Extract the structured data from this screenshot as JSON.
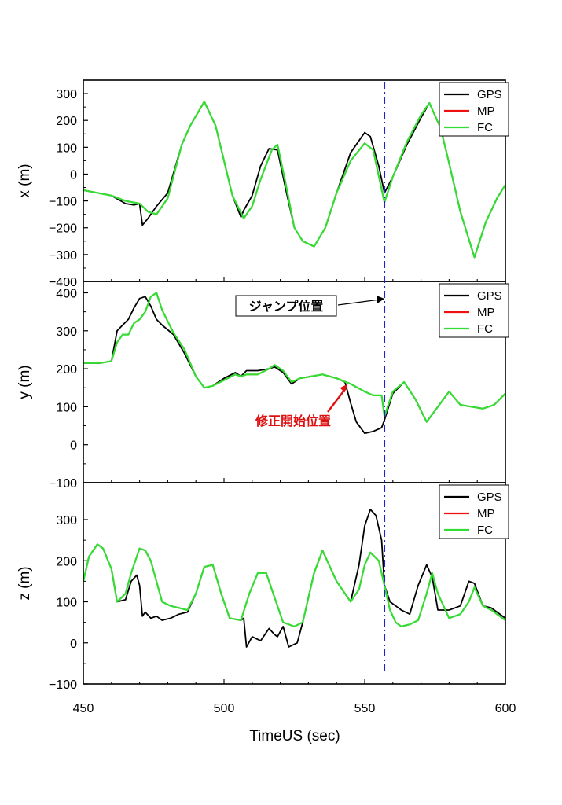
{
  "chart_data": {
    "type": "line",
    "xlabel": "TimeUS (sec)",
    "xlim": [
      450,
      600
    ],
    "x_ticks": [
      "450",
      "500",
      "550",
      "600"
    ],
    "colors": {
      "GPS": "#000000",
      "MP": "#ee1111",
      "FC": "#33dd33",
      "jump_line": "#2222cc"
    },
    "legend": [
      {
        "name": "GPS",
        "color": "#000000"
      },
      {
        "name": "MP",
        "color": "#ee1111"
      },
      {
        "name": "FC",
        "color": "#33dd33"
      }
    ],
    "jump_x": 557,
    "annotations": {
      "jump": "ジャンプ位置",
      "correction": "修正開始位置"
    },
    "panels": [
      {
        "key": "x",
        "ylabel": "x (m)",
        "ylim": [
          -400,
          350
        ],
        "y_ticks": [
          300,
          200,
          100,
          0,
          -100,
          -200,
          -300,
          -400
        ],
        "series": [
          {
            "name": "GPS",
            "x": [
              450,
              460,
              465,
              468,
              470,
              471,
              473,
              476,
              480,
              485,
              488,
              493,
              497,
              500,
              503,
              506,
              507,
              510,
              513,
              516,
              519,
              522,
              525,
              528,
              532,
              536,
              540,
              545,
              550,
              552,
              555,
              557,
              560,
              565,
              570,
              573,
              577,
              580,
              584,
              589,
              593,
              597,
              600
            ],
            "y": [
              -60,
              -80,
              -110,
              -115,
              -110,
              -190,
              -165,
              -120,
              -70,
              110,
              180,
              270,
              180,
              50,
              -80,
              -160,
              -135,
              -80,
              30,
              95,
              90,
              -60,
              -200,
              -250,
              -270,
              -200,
              -70,
              80,
              155,
              140,
              30,
              -70,
              -10,
              110,
              210,
              265,
              170,
              40,
              -140,
              -310,
              -180,
              -90,
              -40
            ]
          },
          {
            "name": "MP",
            "x": [
              450,
              460,
              465,
              470,
              473,
              476,
              480,
              485,
              488,
              493,
              497,
              500,
              503,
              507,
              510,
              513,
              517,
              519,
              522,
              525,
              528,
              532,
              536,
              540,
              545,
              550,
              553,
              557,
              560,
              565,
              570,
              573,
              577,
              580,
              584,
              589,
              593,
              597,
              600
            ],
            "y": [
              -60,
              -80,
              -100,
              -110,
              -140,
              -150,
              -90,
              110,
              180,
              270,
              180,
              50,
              -80,
              -165,
              -120,
              -20,
              90,
              110,
              -40,
              -200,
              -250,
              -270,
              -200,
              -70,
              50,
              115,
              90,
              -105,
              -10,
              120,
              220,
              265,
              170,
              40,
              -140,
              -310,
              -180,
              -90,
              -40
            ]
          },
          {
            "name": "FC",
            "x": [
              450,
              460,
              465,
              470,
              473,
              476,
              480,
              485,
              488,
              493,
              497,
              500,
              503,
              507,
              510,
              513,
              517,
              519,
              522,
              525,
              528,
              532,
              536,
              540,
              545,
              550,
              553,
              557,
              560,
              565,
              570,
              573,
              577,
              580,
              584,
              589,
              593,
              597,
              600
            ],
            "y": [
              -60,
              -80,
              -100,
              -110,
              -140,
              -150,
              -90,
              110,
              180,
              270,
              180,
              50,
              -80,
              -165,
              -120,
              -20,
              90,
              110,
              -40,
              -200,
              -250,
              -270,
              -200,
              -70,
              50,
              115,
              90,
              -105,
              -10,
              120,
              220,
              265,
              170,
              40,
              -140,
              -310,
              -180,
              -90,
              -40
            ]
          }
        ]
      },
      {
        "key": "y",
        "ylabel": "y (m)",
        "ylim": [
          -100,
          430
        ],
        "y_ticks": [
          400,
          300,
          200,
          100,
          0,
          -100
        ],
        "series": [
          {
            "name": "GPS",
            "x": [
              450,
              456,
              460,
              462,
              464,
              466,
              468,
              470,
              472,
              474,
              476,
              478,
              482,
              486,
              490,
              493,
              496,
              500,
              504,
              506,
              508,
              512,
              516,
              518,
              521,
              524,
              527,
              531,
              535,
              540,
              543,
              545,
              547,
              550,
              553,
              556,
              557,
              560,
              564,
              568,
              572,
              576,
              580,
              584,
              588,
              592,
              596,
              600
            ],
            "y": [
              215,
              215,
              220,
              300,
              315,
              330,
              360,
              385,
              390,
              365,
              330,
              315,
              290,
              240,
              180,
              150,
              155,
              175,
              190,
              180,
              195,
              195,
              200,
              205,
              190,
              160,
              175,
              180,
              185,
              175,
              165,
              110,
              60,
              30,
              35,
              45,
              65,
              135,
              165,
              120,
              60,
              100,
              140,
              105,
              100,
              95,
              105,
              135
            ]
          },
          {
            "name": "MP",
            "x": [
              450,
              456,
              460,
              462,
              464,
              466,
              468,
              470,
              472,
              474,
              476,
              478,
              482,
              486,
              490,
              493,
              496,
              500,
              504,
              506,
              508,
              512,
              516,
              518,
              521,
              524,
              527,
              531,
              535,
              540,
              545,
              550,
              553,
              556,
              557,
              560,
              564,
              568,
              572,
              576,
              580,
              584,
              588,
              592,
              596,
              600
            ],
            "y": [
              215,
              215,
              220,
              270,
              290,
              290,
              320,
              330,
              350,
              390,
              400,
              355,
              295,
              250,
              180,
              150,
              155,
              170,
              185,
              180,
              185,
              185,
              200,
              210,
              195,
              165,
              175,
              180,
              185,
              175,
              160,
              140,
              130,
              130,
              75,
              140,
              165,
              120,
              60,
              100,
              140,
              105,
              100,
              95,
              105,
              135
            ]
          },
          {
            "name": "FC",
            "x": [
              450,
              456,
              460,
              462,
              464,
              466,
              468,
              470,
              472,
              474,
              476,
              478,
              482,
              486,
              490,
              493,
              496,
              500,
              504,
              506,
              508,
              512,
              516,
              518,
              521,
              524,
              527,
              531,
              535,
              540,
              545,
              550,
              553,
              556,
              557,
              560,
              564,
              568,
              572,
              576,
              580,
              584,
              588,
              592,
              596,
              600
            ],
            "y": [
              215,
              215,
              220,
              270,
              290,
              290,
              320,
              330,
              350,
              390,
              400,
              355,
              295,
              250,
              180,
              150,
              155,
              170,
              185,
              180,
              185,
              185,
              200,
              210,
              195,
              165,
              175,
              180,
              185,
              175,
              160,
              140,
              130,
              130,
              75,
              140,
              165,
              120,
              60,
              100,
              140,
              105,
              100,
              95,
              105,
              135
            ]
          }
        ]
      },
      {
        "key": "z",
        "ylabel": "z (m)",
        "ylim": [
          -100,
          390
        ],
        "y_ticks": [
          300,
          200,
          100,
          0,
          -100
        ],
        "series": [
          {
            "name": "GPS",
            "x": [
              450,
              452,
              455,
              457,
              460,
              462,
              465,
              467,
              469,
              470,
              471,
              472,
              474,
              476,
              478,
              481,
              484,
              487,
              490,
              493,
              496,
              499,
              502,
              506,
              507,
              508,
              510,
              513,
              516,
              518,
              519,
              521,
              523,
              526,
              528,
              532,
              535,
              540,
              545,
              548,
              550,
              552,
              554,
              556,
              557,
              559,
              561,
              563,
              566,
              569,
              572,
              574,
              576,
              580,
              584,
              587,
              589,
              592,
              595,
              600
            ],
            "y": [
              150,
              210,
              240,
              230,
              180,
              100,
              105,
              150,
              165,
              140,
              65,
              75,
              60,
              65,
              55,
              60,
              70,
              75,
              120,
              185,
              190,
              120,
              60,
              55,
              60,
              -10,
              15,
              5,
              35,
              20,
              15,
              40,
              -10,
              0,
              50,
              170,
              225,
              150,
              100,
              190,
              285,
              325,
              310,
              250,
              140,
              100,
              90,
              80,
              70,
              140,
              190,
              160,
              80,
              80,
              90,
              150,
              145,
              90,
              85,
              60
            ]
          },
          {
            "name": "MP",
            "x": [
              450,
              452,
              455,
              457,
              460,
              462,
              465,
              467,
              469,
              470,
              472,
              474,
              478,
              481,
              484,
              487,
              490,
              493,
              496,
              499,
              502,
              506,
              509,
              512,
              515,
              518,
              521,
              525,
              528,
              532,
              535,
              540,
              545,
              548,
              550,
              552,
              555,
              557,
              559,
              561,
              563,
              566,
              569,
              572,
              574,
              576,
              580,
              584,
              587,
              589,
              592,
              595,
              600
            ],
            "y": [
              150,
              210,
              240,
              230,
              180,
              100,
              120,
              170,
              210,
              230,
              225,
              200,
              100,
              90,
              85,
              80,
              120,
              185,
              190,
              120,
              60,
              55,
              120,
              170,
              170,
              110,
              50,
              40,
              50,
              170,
              225,
              150,
              100,
              130,
              190,
              220,
              200,
              140,
              80,
              50,
              40,
              45,
              55,
              120,
              170,
              120,
              60,
              70,
              100,
              135,
              90,
              80,
              55
            ]
          },
          {
            "name": "FC",
            "x": [
              450,
              452,
              455,
              457,
              460,
              462,
              465,
              467,
              469,
              470,
              472,
              474,
              478,
              481,
              484,
              487,
              490,
              493,
              496,
              499,
              502,
              506,
              509,
              512,
              515,
              518,
              521,
              525,
              528,
              532,
              535,
              540,
              545,
              548,
              550,
              552,
              555,
              557,
              559,
              561,
              563,
              566,
              569,
              572,
              574,
              576,
              580,
              584,
              587,
              589,
              592,
              595,
              600
            ],
            "y": [
              150,
              210,
              240,
              230,
              180,
              100,
              120,
              170,
              210,
              230,
              225,
              200,
              100,
              90,
              85,
              80,
              120,
              185,
              190,
              120,
              60,
              55,
              120,
              170,
              170,
              110,
              50,
              40,
              50,
              170,
              225,
              150,
              100,
              130,
              190,
              220,
              200,
              140,
              80,
              50,
              40,
              45,
              55,
              120,
              170,
              120,
              60,
              70,
              100,
              135,
              90,
              80,
              55
            ]
          }
        ]
      }
    ]
  }
}
